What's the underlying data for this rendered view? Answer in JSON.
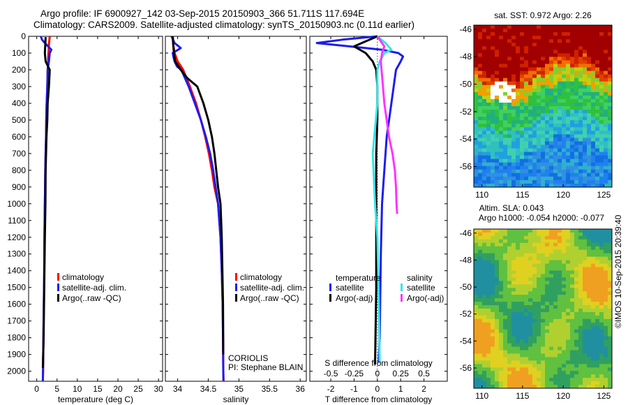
{
  "header": {
    "line1": "Argo profile: IF 6900927_142 03-Sep-2015 20150903_366 51.711S 117.694E",
    "line2": "Climatology: CARS2009. Satellite-adjusted climatology: synTS_20150903.nc (0.11d earlier)"
  },
  "credit": "©IMOS 10-Sep-2015 20:39:40",
  "colors": {
    "red": "#ff0000",
    "blue": "#1c1cf0",
    "black": "#000000",
    "cyan": "#33e6e6",
    "magenta": "#ff33ff"
  },
  "depth_ticks": [
    "0",
    "100",
    "200",
    "300",
    "400",
    "500",
    "600",
    "700",
    "800",
    "900",
    "1000",
    "1100",
    "1200",
    "1300",
    "1400",
    "1500",
    "1600",
    "1700",
    "1800",
    "1900",
    "2000"
  ],
  "chart_data": [
    {
      "id": "temperature",
      "type": "line",
      "xlabel": "temperature (deg C)",
      "ylabel": "",
      "xlim": [
        -2,
        31
      ],
      "ylim": [
        0,
        2060
      ],
      "xticks": [
        "0",
        "5",
        "10",
        "15",
        "20",
        "25",
        "30"
      ],
      "legend": [
        "climatology",
        "satellite-adj. clim.",
        "Argo(..raw -QC)"
      ],
      "legend_location": "lower-right",
      "series": [
        {
          "name": "climatology",
          "color": "red",
          "x": [
            3.2,
            3.0,
            2.9,
            2.8,
            2.7,
            2.6,
            2.45,
            2.35,
            2.3,
            2.2,
            2.1,
            2.0,
            1.9,
            1.85,
            1.75,
            1.65,
            1.55,
            1.5
          ],
          "y": [
            0,
            50,
            100,
            150,
            200,
            300,
            400,
            500,
            600,
            700,
            800,
            1000,
            1200,
            1400,
            1600,
            1800,
            2000,
            2060
          ]
        },
        {
          "name": "satellite-adj. clim.",
          "color": "blue",
          "x": [
            1.0,
            1.3,
            2.0,
            3.6,
            3.2,
            3.0,
            2.7,
            2.6,
            2.45,
            2.35,
            2.3,
            2.2,
            2.1,
            2.0,
            1.9,
            1.85,
            1.75,
            1.65,
            1.55,
            1.5
          ],
          "y": [
            0,
            20,
            40,
            80,
            100,
            150,
            200,
            300,
            400,
            500,
            600,
            700,
            800,
            1000,
            1200,
            1400,
            1600,
            1800,
            2000,
            2060
          ]
        },
        {
          "name": "Argo(..raw -QC)",
          "color": "black",
          "x": [
            2.2,
            2.1,
            2.0,
            2.2,
            3.2,
            3.0,
            2.7,
            2.6,
            2.4,
            2.3,
            2.2,
            2.15,
            2.0,
            1.9,
            1.8,
            1.7,
            1.6,
            1.5
          ],
          "y": [
            5,
            50,
            100,
            150,
            200,
            300,
            400,
            500,
            600,
            700,
            800,
            1000,
            1200,
            1400,
            1600,
            1800,
            1900,
            1980
          ]
        }
      ]
    },
    {
      "id": "salinity",
      "type": "line",
      "xlabel": "salinity",
      "ylabel": "",
      "xlim": [
        33.8,
        36.1
      ],
      "ylim": [
        0,
        2060
      ],
      "xticks": [
        "34",
        "34.5",
        "35",
        "35.5",
        "36"
      ],
      "legend": [
        "climatology",
        "satellite-adj. clim.",
        "Argo(..raw -QC)"
      ],
      "legend_location": "lower-right",
      "annotation": [
        "CORIOLIS",
        "PI: Stephane BLAIN"
      ],
      "series": [
        {
          "name": "climatology",
          "color": "red",
          "x": [
            33.92,
            33.93,
            33.95,
            34.0,
            34.09,
            34.2,
            34.3,
            34.38,
            34.45,
            34.51,
            34.56,
            34.6,
            34.66,
            34.7,
            34.72,
            34.735,
            34.74,
            34.745,
            34.748
          ],
          "y": [
            0,
            50,
            100,
            150,
            200,
            300,
            400,
            500,
            600,
            700,
            800,
            900,
            1000,
            1200,
            1400,
            1600,
            1800,
            2000,
            2060
          ]
        },
        {
          "name": "satellite-adj. clim.",
          "color": "blue",
          "x": [
            33.9,
            33.95,
            34.05,
            33.92,
            33.93,
            33.95,
            33.99,
            34.06,
            34.18,
            34.28,
            34.38,
            34.46,
            34.53,
            34.58,
            34.62,
            34.66,
            34.7,
            34.72,
            34.735,
            34.74,
            34.745,
            34.748
          ],
          "y": [
            0,
            40,
            70,
            100,
            120,
            150,
            180,
            200,
            300,
            400,
            500,
            600,
            700,
            800,
            900,
            1000,
            1200,
            1400,
            1600,
            1800,
            2000,
            2060
          ]
        },
        {
          "name": "Argo(..raw -QC)",
          "color": "black",
          "x": [
            33.92,
            33.93,
            33.94,
            33.96,
            34.05,
            34.16,
            34.32,
            34.42,
            34.5,
            34.56,
            34.6,
            34.63,
            34.66,
            34.7,
            34.72,
            34.73,
            34.74,
            34.745
          ],
          "y": [
            0,
            60,
            100,
            150,
            200,
            250,
            300,
            400,
            500,
            600,
            700,
            800,
            900,
            1000,
            1200,
            1400,
            1600,
            1900
          ]
        }
      ]
    },
    {
      "id": "difference",
      "type": "line",
      "xlabel": "T difference from climatology",
      "xlabel_top": "S difference from climatology",
      "xlim": [
        -2.9,
        3.0
      ],
      "ylim": [
        0,
        2060
      ],
      "xticks": [
        "-2",
        "-1",
        "0",
        "1",
        "2"
      ],
      "xticks_top": [
        "-0.5",
        "-0.25",
        "0",
        "0.25",
        "0.5"
      ],
      "legend": [
        {
          "heading": "temperature",
          "items": [
            "satellite",
            "Argo(-adj)"
          ]
        },
        {
          "heading": "salinity",
          "items": [
            "satellite",
            "Argo(-adj)"
          ]
        }
      ],
      "legend_location": "middle",
      "series": [
        {
          "name": "temperature satellite",
          "color": "blue",
          "x": [
            0,
            -1.5,
            -2.6,
            -1.2,
            0.2,
            0.9,
            1.1,
            1.0,
            0.8,
            0.7,
            0.6,
            0.4,
            0.3,
            0.2,
            0.15,
            0.12,
            0.1,
            0.05
          ],
          "y": [
            0,
            20,
            40,
            60,
            80,
            100,
            120,
            150,
            200,
            300,
            400,
            600,
            800,
            1000,
            1300,
            1600,
            1800,
            1950
          ]
        },
        {
          "name": "temperature Argo(-adj)",
          "color": "black",
          "x": [
            0,
            -1.0,
            -0.5,
            -0.2,
            -0.05,
            0.0,
            0.0,
            -0.05,
            -0.05,
            -0.05,
            -0.05,
            -0.1
          ],
          "y": [
            0,
            60,
            100,
            150,
            200,
            300,
            500,
            700,
            900,
            1200,
            1500,
            1960
          ]
        },
        {
          "name": "salinity satellite",
          "color": "cyan",
          "x": [
            0,
            0.35,
            0.6,
            0.3,
            0.1,
            0.0,
            0.0,
            -0.2,
            -0.1,
            0.0,
            0.05,
            0.1
          ],
          "y": [
            0,
            40,
            80,
            100,
            150,
            200,
            400,
            700,
            1000,
            1200,
            1500,
            1950
          ]
        },
        {
          "name": "salinity Argo(-adj)",
          "color": "magenta",
          "x": [
            0,
            0.3,
            0.2,
            0.15,
            0.18,
            0.3,
            0.5,
            0.65,
            0.75,
            0.8,
            0.82,
            0.85
          ],
          "y": [
            0,
            60,
            100,
            150,
            200,
            400,
            600,
            700,
            800,
            900,
            1000,
            1060
          ]
        }
      ]
    },
    {
      "id": "sst-map",
      "type": "heatmap",
      "title": "sat. SST: 0.972 Argo: 2.26",
      "xticks": [
        "110",
        "115",
        "120",
        "125"
      ],
      "yticks": [
        "-46",
        "-48",
        "-50",
        "-52",
        "-54",
        "-56"
      ],
      "xlim": [
        109,
        126
      ],
      "ylim": [
        -57.5,
        -45.7
      ]
    },
    {
      "id": "sla-map",
      "type": "heatmap",
      "title": "Altim. SLA: 0.043",
      "subtitle": "Argo h1000: -0.054 h2000: -0.077",
      "xticks": [
        "110",
        "115",
        "120",
        "125"
      ],
      "yticks": [
        "-46",
        "-48",
        "-50",
        "-52",
        "-54",
        "-56"
      ],
      "xlim": [
        109,
        126
      ],
      "ylim": [
        -57.5,
        -45.7
      ]
    }
  ]
}
